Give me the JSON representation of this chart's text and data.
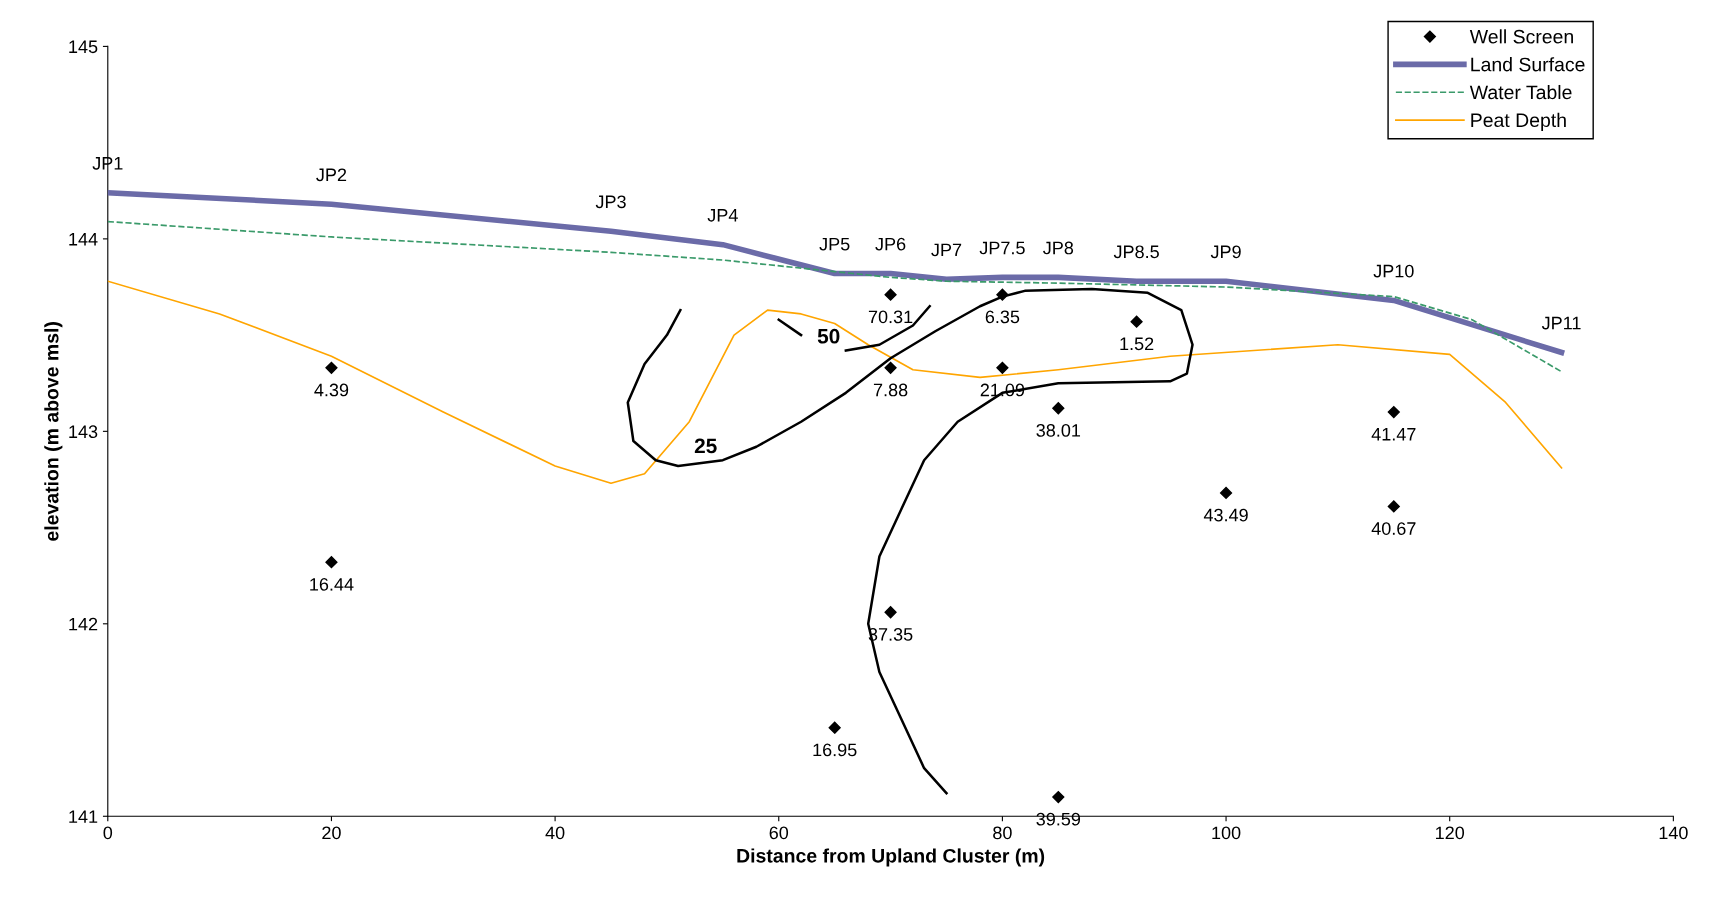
{
  "chart_data": {
    "type": "scatter",
    "xlabel": "Distance from Upland Cluster (m)",
    "ylabel": "elevation (m above msl)",
    "xlim": [
      0,
      140
    ],
    "xticks": [
      0,
      20,
      40,
      60,
      80,
      100,
      120,
      140
    ],
    "ylim": [
      141,
      145
    ],
    "yticks": [
      141,
      142,
      143,
      144,
      145
    ],
    "grid": false,
    "legend": "top right",
    "series": [
      {
        "name": "Well Screen",
        "color": "#000000",
        "marker": "diamond",
        "x": [
          20,
          20,
          70,
          70,
          70,
          65,
          80,
          80,
          85,
          85,
          92,
          100,
          115,
          115
        ],
        "values": [
          143.33,
          142.32,
          143.71,
          143.33,
          142.06,
          141.46,
          143.71,
          143.33,
          143.12,
          141.1,
          143.57,
          142.68,
          143.1,
          142.61
        ]
      },
      {
        "name": "Land Surface",
        "type": "line",
        "color": "#6b6ba8",
        "line_style": "solid",
        "x": [
          0,
          20,
          45,
          55,
          65,
          70,
          75,
          80,
          85,
          92,
          100,
          115,
          130
        ],
        "values": [
          144.24,
          144.18,
          144.04,
          143.97,
          143.82,
          143.82,
          143.79,
          143.8,
          143.8,
          143.78,
          143.78,
          143.68,
          143.41
        ]
      },
      {
        "name": "Water Table",
        "type": "line",
        "color": "#3a9a6a",
        "line_style": "dashed",
        "x": [
          0,
          20,
          45,
          55,
          65,
          70,
          75,
          85,
          100,
          115,
          122,
          130
        ],
        "values": [
          144.09,
          144.01,
          143.93,
          143.89,
          143.83,
          143.8,
          143.78,
          143.77,
          143.75,
          143.7,
          143.58,
          143.31
        ]
      },
      {
        "name": "Peat Depth",
        "type": "line",
        "color": "#ffa500",
        "line_style": "solid",
        "x": [
          0,
          10,
          20,
          30,
          40,
          45,
          48,
          52,
          56,
          59,
          62,
          65,
          68,
          72,
          78,
          85,
          95,
          110,
          120,
          125,
          130
        ],
        "values": [
          143.78,
          143.61,
          143.39,
          143.1,
          142.82,
          142.73,
          142.78,
          143.05,
          143.5,
          143.63,
          143.61,
          143.56,
          143.45,
          143.32,
          143.28,
          143.32,
          143.39,
          143.45,
          143.4,
          143.15,
          142.81
        ]
      },
      {
        "type": "line",
        "color": "#000000",
        "line_style": "solid",
        "x": [
          51.2,
          50,
          48,
          46.5,
          47,
          49,
          51,
          55,
          58,
          62,
          66,
          70,
          74,
          78,
          80,
          82,
          88,
          93,
          96,
          97,
          96.5,
          95,
          85,
          80,
          76,
          73,
          71,
          69,
          68,
          69,
          71,
          73,
          75
        ],
        "values": [
          143.63,
          143.5,
          143.35,
          143.15,
          142.95,
          142.85,
          142.82,
          142.85,
          142.92,
          143.05,
          143.2,
          143.38,
          143.52,
          143.65,
          143.7,
          143.73,
          143.74,
          143.72,
          143.63,
          143.45,
          143.3,
          143.26,
          143.25,
          143.2,
          143.05,
          142.85,
          142.6,
          142.35,
          142.0,
          141.75,
          141.5,
          141.25,
          141.12
        ]
      },
      {
        "type": "line",
        "color": "#000000",
        "line_style": "solid",
        "x": [
          60,
          62,
          null,
          66,
          69,
          72,
          73.5
        ],
        "values": [
          143.58,
          143.5,
          null,
          143.42,
          143.45,
          143.55,
          143.65
        ]
      }
    ],
    "annotations": [
      {
        "text": "JP1",
        "x": 0,
        "y": 144.24
      },
      {
        "text": "JP2",
        "x": 20,
        "y": 144.18
      },
      {
        "text": "JP3",
        "x": 45,
        "y": 144.04
      },
      {
        "text": "JP4",
        "x": 55,
        "y": 143.97
      },
      {
        "text": "JP5",
        "x": 65,
        "y": 143.82
      },
      {
        "text": "JP6",
        "x": 70,
        "y": 143.82
      },
      {
        "text": "JP7",
        "x": 75,
        "y": 143.79
      },
      {
        "text": "JP7.5",
        "x": 80,
        "y": 143.8
      },
      {
        "text": "JP8",
        "x": 85,
        "y": 143.8
      },
      {
        "text": "JP8.5",
        "x": 92,
        "y": 143.78
      },
      {
        "text": "JP9",
        "x": 100,
        "y": 143.78
      },
      {
        "text": "JP10",
        "x": 115,
        "y": 143.68
      },
      {
        "text": "JP11",
        "x": 130,
        "y": 143.41
      },
      {
        "text": "50",
        "x": 66,
        "y": 143.42
      },
      {
        "text": "25",
        "x": 55,
        "y": 142.85
      },
      {
        "text": "4.39",
        "x": 20,
        "y": 143.33
      },
      {
        "text": "16.44",
        "x": 20,
        "y": 142.32
      },
      {
        "text": "70.31",
        "x": 70,
        "y": 143.71
      },
      {
        "text": "7.88",
        "x": 70,
        "y": 143.33
      },
      {
        "text": "37.35",
        "x": 70,
        "y": 142.06
      },
      {
        "text": "16.95",
        "x": 65,
        "y": 141.46
      },
      {
        "text": "6.35",
        "x": 80,
        "y": 143.71
      },
      {
        "text": "21.09",
        "x": 80,
        "y": 143.33
      },
      {
        "text": "38.01",
        "x": 85,
        "y": 143.12
      },
      {
        "text": "39.59",
        "x": 85,
        "y": 141.1
      },
      {
        "text": "1.52",
        "x": 92,
        "y": 143.57
      },
      {
        "text": "43.49",
        "x": 100,
        "y": 142.68
      },
      {
        "text": "41.47",
        "x": 115,
        "y": 143.1
      },
      {
        "text": "40.67",
        "x": 115,
        "y": 142.61
      }
    ]
  }
}
